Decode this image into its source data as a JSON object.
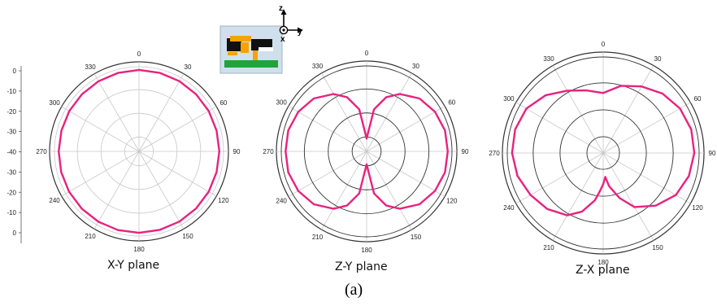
{
  "caption": "(a)",
  "colors": {
    "pattern": "#e8227f",
    "grid": "#c8c8c8",
    "ring": "#333333"
  },
  "icons": [
    "antenna-structure-icon",
    "coordinate-axes-icon"
  ],
  "axes_icon": {
    "z": "z",
    "x": "x",
    "y": "y"
  },
  "left_scale": [
    "0",
    "-10",
    "-20",
    "-30",
    "-40",
    "-30",
    "-20",
    "-10",
    "0"
  ],
  "chart_data": [
    {
      "type": "polar",
      "title": "X-Y plane",
      "angle_ticks": [
        "0",
        "30",
        "60",
        "90",
        "120",
        "150",
        "180",
        "210",
        "240",
        "270",
        "300",
        "330"
      ],
      "radial_range": [
        -40,
        0
      ],
      "grid": true,
      "series": [
        {
          "angles": [
            0,
            15,
            30,
            45,
            60,
            75,
            90,
            105,
            120,
            135,
            150,
            165,
            180,
            195,
            210,
            225,
            240,
            255,
            270,
            285,
            300,
            315,
            330,
            345
          ],
          "values": [
            -1.5,
            -1.6,
            -1.7,
            -1.8,
            -1.9,
            -2.0,
            -2.0,
            -2.0,
            -1.9,
            -1.8,
            -1.7,
            -1.6,
            -1.5,
            -1.5,
            -1.6,
            -1.7,
            -1.8,
            -1.9,
            -2.0,
            -2.0,
            -1.9,
            -1.8,
            -1.7,
            -1.6
          ]
        }
      ]
    },
    {
      "type": "polar",
      "title": "Z-Y plane",
      "angle_ticks": [
        "0",
        "30",
        "60",
        "90",
        "120",
        "150",
        "180",
        "210",
        "240",
        "270",
        "300",
        "330"
      ],
      "radial_range": [
        -40,
        0
      ],
      "grid": true,
      "series": [
        {
          "angles": [
            0,
            10,
            20,
            30,
            45,
            60,
            75,
            90,
            105,
            120,
            135,
            150,
            160,
            170,
            180,
            190,
            200,
            210,
            225,
            240,
            255,
            270,
            285,
            300,
            315,
            330,
            340,
            350
          ],
          "values": [
            -34,
            -20,
            -13,
            -9,
            -5,
            -3,
            -2,
            -2,
            -2,
            -3,
            -5,
            -9,
            -13,
            -20,
            -34,
            -20,
            -13,
            -9,
            -5,
            -3,
            -2,
            -2,
            -2,
            -3,
            -5,
            -9,
            -13,
            -20
          ]
        }
      ]
    },
    {
      "type": "polar",
      "title": "Z-X plane",
      "angle_ticks": [
        "0",
        "30",
        "60",
        "90",
        "120",
        "150",
        "180",
        "210",
        "240",
        "270",
        "300",
        "330"
      ],
      "radial_range": [
        -40,
        0
      ],
      "grid": true,
      "series": [
        {
          "angles": [
            0,
            15,
            30,
            45,
            60,
            75,
            90,
            105,
            120,
            135,
            150,
            160,
            170,
            175,
            180,
            185,
            190,
            200,
            210,
            225,
            240,
            255,
            270,
            285,
            300,
            315,
            330,
            345
          ],
          "values": [
            -15,
            -11,
            -8,
            -5,
            -3,
            -2,
            -2,
            -3,
            -5,
            -9,
            -14,
            -20,
            -26,
            -30,
            -27,
            -24,
            -20,
            -14,
            -10,
            -7,
            -5,
            -3,
            -2,
            -2,
            -3,
            -6,
            -10,
            -13
          ]
        }
      ]
    }
  ]
}
